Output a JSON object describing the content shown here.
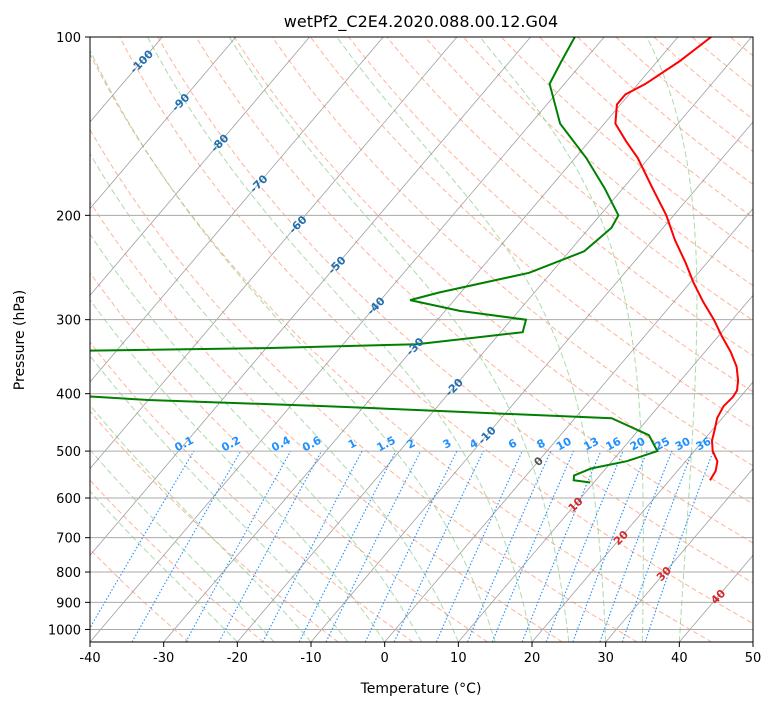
{
  "chart_data": {
    "type": "line",
    "subtype": "skew-t log-p",
    "title": "wetPf2_C2E4.2020.088.00.12.G04",
    "xlabel": "Temperature (°C)",
    "ylabel": "Pressure (hPa)",
    "xlim": [
      -40,
      50
    ],
    "ylim": [
      1050,
      100
    ],
    "x_ticks": [
      "-40",
      "-30",
      "-20",
      "-10",
      "0",
      "10",
      "20",
      "30",
      "40",
      "50"
    ],
    "y_ticks": [
      "100",
      "200",
      "300",
      "400",
      "500",
      "600",
      "700",
      "800",
      "900",
      "1000"
    ],
    "grid": true,
    "series": [
      {
        "name": "temperature",
        "color": "#ff0000",
        "points": [
          {
            "p": 560,
            "t": 25.5
          },
          {
            "p": 540,
            "t": 25.2
          },
          {
            "p": 520,
            "t": 24.3
          },
          {
            "p": 500,
            "t": 22.5
          },
          {
            "p": 480,
            "t": 21.2
          },
          {
            "p": 460,
            "t": 20.3
          },
          {
            "p": 440,
            "t": 19.3
          },
          {
            "p": 420,
            "t": 18.8
          },
          {
            "p": 405,
            "t": 19.0
          },
          {
            "p": 395,
            "t": 18.8
          },
          {
            "p": 380,
            "t": 17.8
          },
          {
            "p": 360,
            "t": 16.0
          },
          {
            "p": 340,
            "t": 13.5
          },
          {
            "p": 320,
            "t": 10.5
          },
          {
            "p": 300,
            "t": 7.5
          },
          {
            "p": 280,
            "t": 4.0
          },
          {
            "p": 260,
            "t": 0.5
          },
          {
            "p": 240,
            "t": -3.0
          },
          {
            "p": 220,
            "t": -7.0
          },
          {
            "p": 200,
            "t": -11.0
          },
          {
            "p": 180,
            "t": -16.0
          },
          {
            "p": 160,
            "t": -21.5
          },
          {
            "p": 150,
            "t": -25.0
          },
          {
            "p": 140,
            "t": -28.5
          },
          {
            "p": 130,
            "t": -30.5
          },
          {
            "p": 125,
            "t": -30.5
          },
          {
            "p": 120,
            "t": -29.0
          },
          {
            "p": 110,
            "t": -27.0
          },
          {
            "p": 100,
            "t": -25.5
          }
        ]
      },
      {
        "name": "dewpoint",
        "color": "#008000",
        "points": [
          {
            "p": 565,
            "t": 9.5
          },
          {
            "p": 560,
            "t": 7.0
          },
          {
            "p": 550,
            "t": 6.5
          },
          {
            "p": 535,
            "t": 8.0
          },
          {
            "p": 520,
            "t": 12.0
          },
          {
            "p": 500,
            "t": 15.0
          },
          {
            "p": 470,
            "t": 12.0
          },
          {
            "p": 440,
            "t": 5.0
          },
          {
            "p": 430,
            "t": -15.0
          },
          {
            "p": 420,
            "t": -35.0
          },
          {
            "p": 410,
            "t": -60.0
          },
          {
            "p": 400,
            "t": -75.0
          },
          {
            "p": 340,
            "t": -85.0
          },
          {
            "p": 335,
            "t": -50.0
          },
          {
            "p": 330,
            "t": -30.0
          },
          {
            "p": 315,
            "t": -17.0
          },
          {
            "p": 300,
            "t": -18.0
          },
          {
            "p": 290,
            "t": -28.0
          },
          {
            "p": 278,
            "t": -36.0
          },
          {
            "p": 270,
            "t": -33.0
          },
          {
            "p": 250,
            "t": -23.0
          },
          {
            "p": 230,
            "t": -18.0
          },
          {
            "p": 210,
            "t": -17.0
          },
          {
            "p": 200,
            "t": -17.5
          },
          {
            "p": 180,
            "t": -22.5
          },
          {
            "p": 160,
            "t": -28.5
          },
          {
            "p": 140,
            "t": -36.0
          },
          {
            "p": 120,
            "t": -42.0
          },
          {
            "p": 110,
            "t": -43.0
          },
          {
            "p": 100,
            "t": -44.0
          }
        ]
      }
    ],
    "background_lines": {
      "isotherm_labels": [
        "-100",
        "-90",
        "-80",
        "-70",
        "-60",
        "-50",
        "-40",
        "-30",
        "-20",
        "-10",
        "0",
        "10",
        "20",
        "30",
        "40"
      ],
      "mixing_ratio_labels": [
        "0.1",
        "0.2",
        "0.4",
        "0.6",
        "1",
        "1.5",
        "2",
        "3",
        "4",
        "6",
        "8",
        "10",
        "13",
        "16",
        "20",
        "25",
        "30",
        "36"
      ],
      "mixing_ratio_values": [
        0.1,
        0.2,
        0.4,
        0.6,
        1,
        1.5,
        2,
        3,
        4,
        6,
        8,
        10,
        13,
        16,
        20,
        25,
        30,
        36
      ],
      "colors": {
        "isotherm": "#888888",
        "isobar": "#aaaaaa",
        "dry_adiabat": "#ff9977",
        "moist_adiabat": "#88cc88",
        "mixing_ratio": "#1e90ff",
        "isotherm_label": "#1f6fb0",
        "positive_label": "#d62728",
        "zero_label": "#555555"
      }
    }
  }
}
